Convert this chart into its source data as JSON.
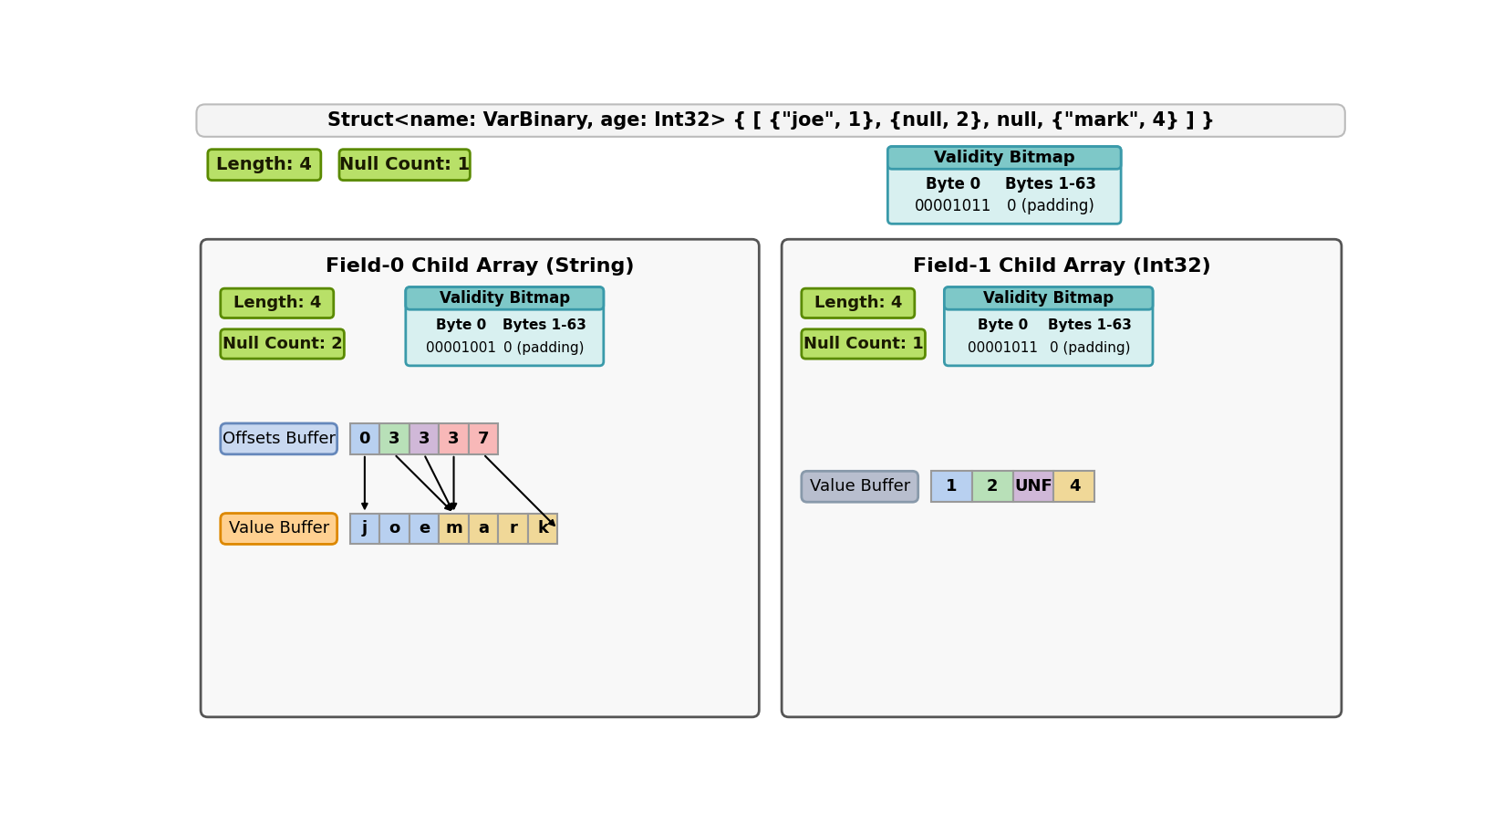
{
  "title": "Struct<name: VarBinary, age: Int32> { [ {\"joe\", 1}, {null, 2}, null, {\"mark\", 4} ] }",
  "bg_color": "#ffffff",
  "green_box_bg": "#b8e068",
  "green_box_border": "#5a8a00",
  "teal_header_bg": "#7ec8c8",
  "teal_body_bg": "#d8f0f0",
  "teal_box_border": "#3a9aaa",
  "blue_buffer_bg": "#c8d8f0",
  "blue_buffer_border": "#6688bb",
  "orange_buffer_bg": "#ffd090",
  "orange_buffer_border": "#dd8800",
  "gray_buffer_bg": "#b8bece",
  "gray_buffer_border": "#8899aa",
  "validity_bitmap_main": {
    "byte0": "00001011",
    "bytes163": "0 (padding)"
  },
  "validity_bitmap_field0": {
    "byte0": "00001001",
    "bytes163": "0 (padding)"
  },
  "validity_bitmap_field1": {
    "byte0": "00001011",
    "bytes163": "0 (padding)"
  },
  "offsets_values": [
    "0",
    "3",
    "3",
    "3",
    "7"
  ],
  "offsets_colors": [
    "#b8d0f0",
    "#b8e0b8",
    "#d0b8d8",
    "#f8b8b8",
    "#f8b8b8"
  ],
  "value_chars": [
    "j",
    "o",
    "e",
    "m",
    "a",
    "r",
    "k"
  ],
  "value_char_colors": [
    "#b8d0f0",
    "#b8d0f0",
    "#b8d0f0",
    "#f0d898",
    "#f0d898",
    "#f0d898",
    "#f0d898"
  ],
  "int32_values": [
    "1",
    "2",
    "UNF",
    "4"
  ],
  "int32_colors": [
    "#b8d0f0",
    "#b8e0b8",
    "#d0b8d8",
    "#f0d898"
  ]
}
